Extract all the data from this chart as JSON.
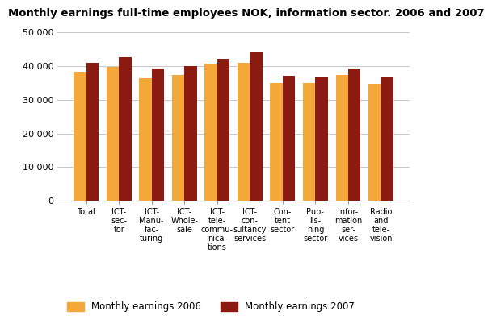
{
  "title": "Monthly earnings full-time employees NOK, information sector. 2006 and 2007",
  "categories": [
    "Total",
    "ICT-\nsec-\ntor",
    "ICT-\nManu-\nfac-\nturing",
    "ICT-\nWhole-\nsale",
    "ICT-\ntele-\ncommu-\nnica-\ntions",
    "ICT-\ncon-\nsultancy\nservices",
    "Con-\ntent\nsector",
    "Pub-\nlis-\nhing\nsector",
    "Infor-\nmation\nser-\nvices",
    "Radio\nand\ntele-\nvision"
  ],
  "values_2006": [
    38200,
    39800,
    36500,
    37300,
    40700,
    41000,
    35000,
    35000,
    37400,
    34700
  ],
  "values_2007": [
    41000,
    42700,
    39300,
    40000,
    42200,
    44300,
    37200,
    36700,
    39300,
    36700
  ],
  "color_2006": "#F5A83A",
  "color_2007": "#8B1A10",
  "ylim": [
    0,
    50000
  ],
  "yticks": [
    0,
    10000,
    20000,
    30000,
    40000,
    50000
  ],
  "ytick_labels": [
    "0",
    "10 000",
    "20 000",
    "30 000",
    "40 000",
    "50 000"
  ],
  "legend_2006": "Monthly earnings 2006",
  "legend_2007": "Monthly earnings 2007",
  "background_color": "#FFFFFF",
  "grid_color": "#C8C8C8",
  "title_fontsize": 9.5,
  "tick_fontsize": 8,
  "xtick_fontsize": 7,
  "legend_fontsize": 8.5
}
